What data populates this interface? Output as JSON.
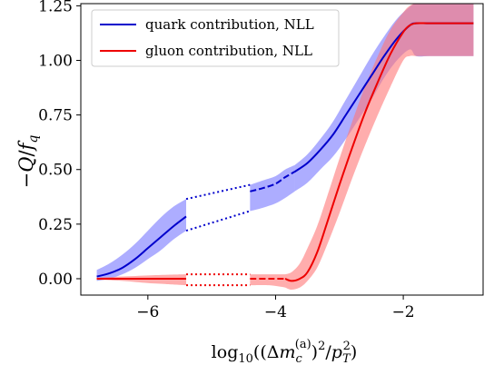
{
  "chart_data": {
    "type": "line",
    "title": "",
    "xlabel": "log10((Δm_c^(a))^2/p_T^2)",
    "xlabel_parts": {
      "log": "log",
      "sub": "10",
      "open": "((Δ",
      "m": "m",
      "c": "c",
      "a": "(a)",
      "mid": ")",
      "sq1": "2",
      "slash": "/",
      "p": "p",
      "T": "T",
      "sq2": "2",
      "close": ")"
    },
    "ylabel": "−Q/f_q",
    "ylabel_parts": {
      "minus": "−",
      "Q": "Q",
      "slash": "/",
      "f": "f",
      "q": "q"
    },
    "xlim": [
      -7.05,
      -0.75
    ],
    "ylim": [
      -0.075,
      1.26
    ],
    "xticks": [
      -6,
      -4,
      -2
    ],
    "xtick_labels": [
      "−6",
      "−4",
      "−2"
    ],
    "yticks": [
      0.0,
      0.25,
      0.5,
      0.75,
      1.0,
      1.25
    ],
    "ytick_labels": [
      "0.00",
      "0.25",
      "0.50",
      "0.75",
      "1.00",
      "1.25"
    ],
    "legend": {
      "placement": "top-left",
      "entries": [
        "quark contribution, NLL",
        "gluon contribution, NLL"
      ]
    },
    "grid": false,
    "series": [
      {
        "name": "quark contribution, NLL",
        "color": "#0000cc",
        "band_color": "#7777ff",
        "segments": [
          {
            "style": "solid",
            "x": [
              -6.8,
              -6.6,
              -6.4,
              -6.2,
              -6.0,
              -5.8,
              -5.6,
              -5.4
            ],
            "y": [
              0.01,
              0.025,
              0.05,
              0.09,
              0.14,
              0.19,
              0.24,
              0.285
            ],
            "lower": [
              -0.01,
              0.0,
              0.02,
              0.05,
              0.09,
              0.13,
              0.18,
              0.22
            ],
            "upper": [
              0.04,
              0.07,
              0.11,
              0.16,
              0.22,
              0.28,
              0.33,
              0.365
            ]
          },
          {
            "style": "dashed",
            "x": [
              -4.4,
              -4.2,
              -4.0,
              -3.85,
              -3.7
            ],
            "y": [
              0.4,
              0.415,
              0.435,
              0.465,
              0.49
            ],
            "lower": [
              0.31,
              0.325,
              0.345,
              0.37,
              0.4
            ],
            "upper": [
              0.43,
              0.45,
              0.47,
              0.5,
              0.52
            ]
          },
          {
            "style": "solid",
            "x": [
              -3.7,
              -3.5,
              -3.3,
              -3.1,
              -2.9,
              -2.7,
              -2.5,
              -2.3,
              -2.1,
              -1.9,
              -1.8,
              -1.6,
              -1.3,
              -0.9
            ],
            "y": [
              0.49,
              0.53,
              0.59,
              0.66,
              0.75,
              0.84,
              0.93,
              1.02,
              1.1,
              1.16,
              1.17,
              1.17,
              1.17,
              1.17
            ],
            "lower": [
              0.4,
              0.44,
              0.5,
              0.56,
              0.64,
              0.73,
              0.82,
              0.92,
              1.0,
              1.05,
              1.02,
              1.02,
              1.02,
              1.02
            ],
            "upper": [
              0.52,
              0.57,
              0.64,
              0.72,
              0.82,
              0.92,
              1.02,
              1.11,
              1.19,
              1.245,
              1.26,
              1.26,
              1.26,
              1.26
            ]
          }
        ],
        "connectors": [
          {
            "x": [
              -5.4,
              -4.4
            ],
            "y": [
              0.365,
              0.43
            ]
          },
          {
            "x": [
              -5.4,
              -4.4
            ],
            "y": [
              0.22,
              0.31
            ]
          }
        ]
      },
      {
        "name": "gluon contribution, NLL",
        "color": "#ee0000",
        "band_color": "#ff7777",
        "segments": [
          {
            "style": "solid",
            "x": [
              -6.8,
              -6.4,
              -6.0,
              -5.7,
              -5.4
            ],
            "y": [
              0.0,
              0.0,
              0.0,
              0.0,
              0.0
            ],
            "lower": [
              -0.005,
              -0.01,
              -0.02,
              -0.025,
              -0.03
            ],
            "upper": [
              0.005,
              0.01,
              0.015,
              0.018,
              0.02
            ]
          },
          {
            "style": "dashed",
            "x": [
              -4.4,
              -4.1,
              -3.85
            ],
            "y": [
              0.0,
              0.0,
              0.0
            ],
            "lower": [
              -0.03,
              -0.03,
              -0.04
            ],
            "upper": [
              0.02,
              0.02,
              0.02
            ]
          },
          {
            "style": "solid",
            "x": [
              -3.85,
              -3.75,
              -3.62,
              -3.5,
              -3.35,
              -3.2,
              -3.0,
              -2.8,
              -2.6,
              -2.4,
              -2.2,
              -2.0,
              -1.9,
              -1.8,
              -1.6,
              -1.3,
              -0.9
            ],
            "y": [
              0.0,
              -0.01,
              0.0,
              0.03,
              0.12,
              0.25,
              0.43,
              0.6,
              0.76,
              0.9,
              1.03,
              1.13,
              1.16,
              1.17,
              1.17,
              1.17,
              1.17
            ],
            "lower": [
              -0.04,
              -0.05,
              -0.04,
              -0.01,
              0.05,
              0.15,
              0.3,
              0.46,
              0.61,
              0.75,
              0.88,
              1.0,
              1.02,
              1.02,
              1.02,
              1.02,
              1.02
            ],
            "upper": [
              0.02,
              0.03,
              0.07,
              0.14,
              0.24,
              0.37,
              0.55,
              0.72,
              0.88,
              1.02,
              1.14,
              1.22,
              1.25,
              1.26,
              1.26,
              1.26,
              1.26
            ]
          }
        ],
        "connectors": [
          {
            "x": [
              -5.4,
              -4.4
            ],
            "y": [
              0.02,
              0.02
            ]
          },
          {
            "x": [
              -5.4,
              -4.4
            ],
            "y": [
              -0.03,
              -0.03
            ]
          }
        ]
      }
    ]
  }
}
